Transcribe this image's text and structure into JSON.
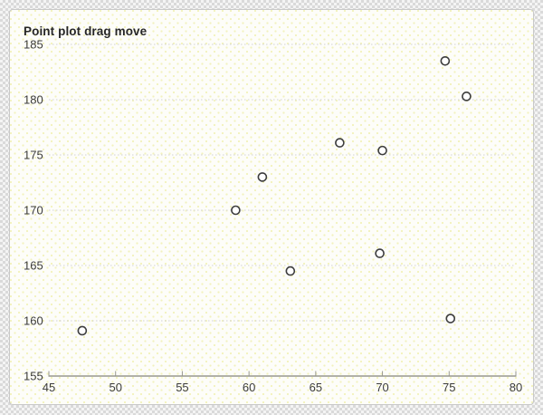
{
  "chart_data": {
    "type": "scatter",
    "title": "Point plot drag move",
    "xlabel": "",
    "ylabel": "",
    "legend": "none",
    "grid": "horizontal-dotted",
    "x_axis": {
      "min": 45,
      "max": 80,
      "ticks": [
        45,
        50,
        55,
        60,
        65,
        70,
        75,
        80
      ]
    },
    "y_axis": {
      "min": 155,
      "max": 185,
      "ticks": [
        155,
        160,
        165,
        170,
        175,
        180,
        185
      ]
    },
    "points": [
      {
        "x": 47.5,
        "y": 159.1
      },
      {
        "x": 59.0,
        "y": 170.0
      },
      {
        "x": 61.0,
        "y": 173.0
      },
      {
        "x": 63.1,
        "y": 164.5
      },
      {
        "x": 66.8,
        "y": 176.1
      },
      {
        "x": 69.8,
        "y": 166.1
      },
      {
        "x": 70.0,
        "y": 175.4
      },
      {
        "x": 74.7,
        "y": 183.5
      },
      {
        "x": 75.1,
        "y": 160.2
      },
      {
        "x": 76.3,
        "y": 180.3
      }
    ],
    "colors": {
      "point_stroke": "#3d3d3d",
      "point_fill": "#ffffff",
      "axis": "#98988f",
      "gridline": "#d1d1d7",
      "title_text": "#262626",
      "tick_label_text": "#3b3b3b",
      "card_background": "#fdfdf9",
      "card_dot_pattern": "#f2f2bd",
      "card_border": "#c9c9c9"
    }
  }
}
